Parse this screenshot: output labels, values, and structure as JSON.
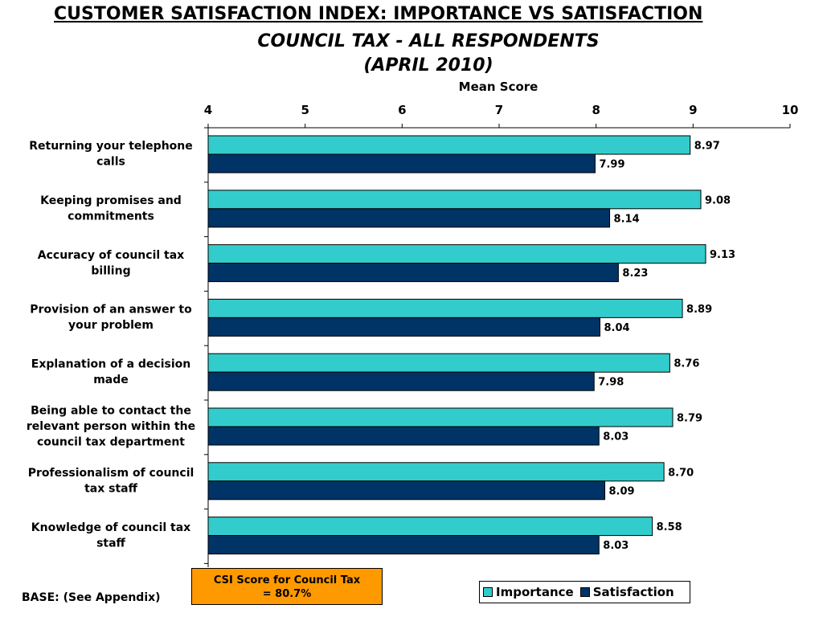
{
  "title": {
    "line1": "CUSTOMER SATISFACTION INDEX: IMPORTANCE VS SATISFACTION",
    "line2": "COUNCIL TAX - ALL RESPONDENTS",
    "line3": "(APRIL 2010)"
  },
  "chart_data": {
    "type": "bar",
    "orientation": "horizontal",
    "xlabel": "Mean Score",
    "xlim": [
      4,
      10
    ],
    "x_ticks": [
      4,
      5,
      6,
      7,
      8,
      9,
      10
    ],
    "x_tick_labels": [
      "4",
      "5",
      "6",
      "7",
      "8",
      "9",
      "10"
    ],
    "axis_position": "top",
    "grid": false,
    "categories": [
      "Returning your telephone calls",
      "Keeping promises and commitments",
      "Accuracy of council tax billing",
      "Provision of an answer to your problem",
      "Explanation of a decision made",
      "Being able to contact the relevant person within the council tax department",
      "Professionalism of council tax staff",
      "Knowledge of council tax staff"
    ],
    "category_lines": [
      [
        "Returning your telephone",
        "calls"
      ],
      [
        "Keeping promises and",
        "commitments"
      ],
      [
        "Accuracy of council tax",
        "billing"
      ],
      [
        "Provision of an answer to",
        "your problem"
      ],
      [
        "Explanation of a decision",
        "made"
      ],
      [
        "Being able to contact the",
        "relevant person within the",
        "council tax department"
      ],
      [
        "Professionalism of council",
        "tax staff"
      ],
      [
        "Knowledge of council tax",
        "staff"
      ]
    ],
    "series": [
      {
        "name": "Importance",
        "color": "#33cccc",
        "values": [
          8.97,
          9.08,
          9.13,
          8.89,
          8.76,
          8.79,
          8.7,
          8.58
        ],
        "labels": [
          "8.97",
          "9.08",
          "9.13",
          "8.89",
          "8.76",
          "8.79",
          "8.70",
          "8.58"
        ]
      },
      {
        "name": "Satisfaction",
        "color": "#003366",
        "values": [
          7.99,
          8.14,
          8.23,
          8.04,
          7.98,
          8.03,
          8.09,
          8.03
        ],
        "labels": [
          "7.99",
          "8.14",
          "8.23",
          "8.04",
          "7.98",
          "8.03",
          "8.09",
          "8.03"
        ]
      }
    ],
    "legend_position": "bottom-right"
  },
  "csi_box": {
    "line1": "CSI Score for Council Tax",
    "line2": "= 80.7%",
    "color": "#ff9900"
  },
  "base_note": "BASE: (See Appendix)"
}
